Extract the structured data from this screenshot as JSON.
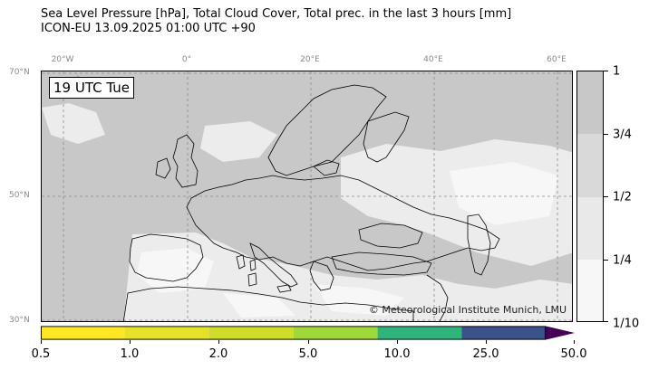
{
  "title": {
    "line1": "Sea Level Pressure [hPa], Total Cloud Cover, Total prec. in the last 3 hours [mm]",
    "line2": "ICON-EU 13.09.2025 01:00 UTC +90"
  },
  "map": {
    "time_label": "19 UTC Tue",
    "copyright": "© Meteorological Institute Munich, LMU",
    "lon_labels": [
      "20°W",
      "0°",
      "20°E",
      "40°E",
      "60°E"
    ],
    "lat_labels": [
      "70°N",
      "50°N",
      "30°N"
    ],
    "background_color": "#c8c8c8",
    "land_outline_color": "#000000"
  },
  "cloud_cover_legend": {
    "labels": [
      "1",
      "3/4",
      "1/2",
      "1/4",
      "1/10"
    ],
    "colors": [
      "#c8c8c8",
      "#d9d9d9",
      "#e9e9e9",
      "#f7f7f7"
    ]
  },
  "precip_legend": {
    "labels": [
      "0.5",
      "1.0",
      "2.0",
      "5.0",
      "10.0",
      "25.0",
      "50.0"
    ],
    "colors": [
      "#fde725",
      "#e6e22a",
      "#d0dd2a",
      "#a0d83a",
      "#2fb47c",
      "#3b528b",
      "#440154"
    ]
  }
}
